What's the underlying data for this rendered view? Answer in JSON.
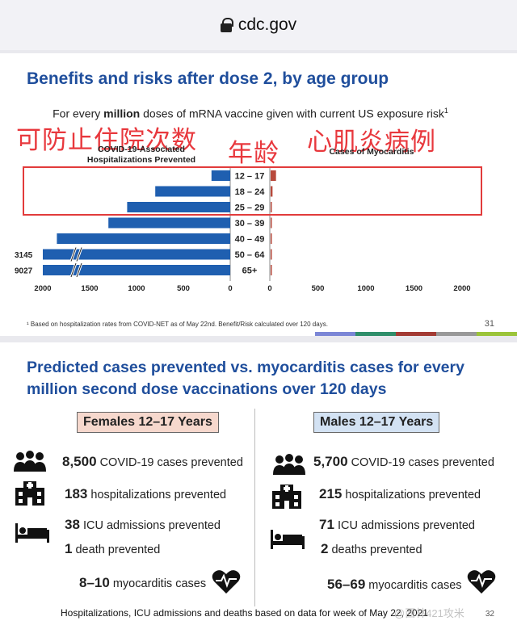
{
  "browser": {
    "url": "cdc.gov"
  },
  "slide1": {
    "title": "Benefits and risks after dose 2, by age group",
    "subtitle_pre": "For every ",
    "subtitle_bold": "million",
    "subtitle_post": " doses of mRNA vaccine given with current US exposure risk",
    "subtitle_sup": "1",
    "annot_left": "可防止住院次数",
    "annot_mid": "年龄",
    "annot_right": "心肌炎病例",
    "left_label": "COVID-19-Associated\nHospitalizations Prevented",
    "right_label": "Cases of Myocarditis",
    "footnote": "¹ Based on hospitalization rates from COVID-NET as of May 22nd. Benefit/Risk calculated over 120 days.",
    "slide_number": "31"
  },
  "chart_data": {
    "type": "bar",
    "categories": [
      "12 – 17",
      "18 – 24",
      "25 – 29",
      "30 – 39",
      "40 – 49",
      "50 – 64",
      "65+"
    ],
    "series": [
      {
        "name": "COVID-19-Associated Hospitalizations Prevented",
        "values": [
          200,
          800,
          1100,
          1300,
          1850,
          3145,
          9027
        ]
      },
      {
        "name": "Cases of Myocarditis",
        "values": [
          56,
          20,
          10,
          5,
          3,
          1,
          1
        ]
      }
    ],
    "value_labels": {
      "50 – 64": "3145",
      "65+": "9027"
    },
    "left_axis_ticks": [
      "2000",
      "1500",
      "1000",
      "500",
      "0"
    ],
    "right_axis_ticks": [
      "0",
      "500",
      "1000",
      "1500",
      "2000"
    ],
    "left_xlim": [
      2000,
      0
    ],
    "right_xlim": [
      0,
      2000
    ],
    "axis_break": true,
    "colors": {
      "benefit": "#1f5fb0",
      "risk": "#b84a3c"
    }
  },
  "slide2": {
    "title_line1": "Predicted cases prevented vs. myocarditis cases for every",
    "title_line2": "million second dose vaccinations over 120 days",
    "females": {
      "header": "Females 12–17 Years",
      "cases_num": "8,500",
      "cases_text": " COVID-19 cases prevented",
      "hosp_num": "183",
      "hosp_text": " hospitalizations prevented",
      "icu_num": "38",
      "icu_text": " ICU admissions prevented",
      "death_num": "1",
      "death_text": " death prevented",
      "myo_num": "8–10",
      "myo_text": " myocarditis cases"
    },
    "males": {
      "header": "Males 12–17 Years",
      "cases_num": "5,700",
      "cases_text": " COVID-19 cases prevented",
      "hosp_num": "215",
      "hosp_text": " hospitalizations prevented",
      "icu_num": "71",
      "icu_text": " ICU admissions prevented",
      "death_num": "2",
      "death_text": " deaths prevented",
      "myo_num": "56–69",
      "myo_text": " myocarditis cases"
    },
    "bottom_note": "Hospitalizations, ICU admissions and deaths based on data for week of May 22, 2021",
    "slide_number": "32",
    "watermark": "@西林421攻米"
  }
}
